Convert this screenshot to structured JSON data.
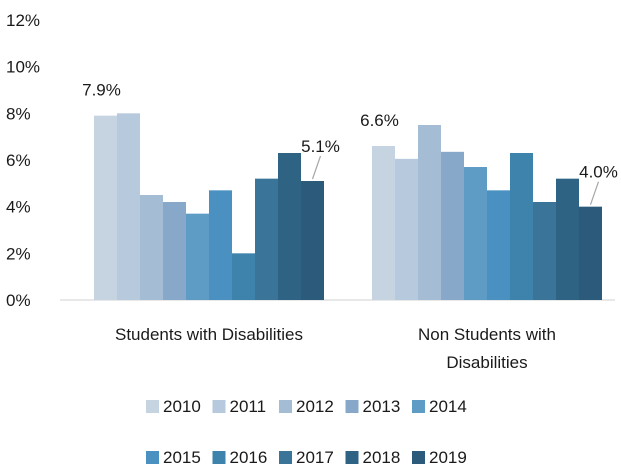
{
  "chart_data": {
    "type": "bar",
    "categories": [
      "Students with Disabilities",
      "Non Students with Disabilities"
    ],
    "category_lines": [
      [
        "Students with Disabilities"
      ],
      [
        "Non Students with",
        "Disabilities"
      ]
    ],
    "series": [
      {
        "name": "2010",
        "color": "#c6d3e0",
        "values": [
          7.9,
          6.6
        ]
      },
      {
        "name": "2011",
        "color": "#b6c9dd",
        "values": [
          8.0,
          6.05
        ]
      },
      {
        "name": "2012",
        "color": "#a4bcd4",
        "values": [
          4.5,
          7.5
        ]
      },
      {
        "name": "2013",
        "color": "#87a8c8",
        "values": [
          4.2,
          6.35
        ]
      },
      {
        "name": "2014",
        "color": "#5e9cc5",
        "values": [
          3.7,
          5.7
        ]
      },
      {
        "name": "2015",
        "color": "#4a90c0",
        "values": [
          4.7,
          4.7
        ]
      },
      {
        "name": "2016",
        "color": "#3d83ac",
        "values": [
          2.0,
          6.3
        ]
      },
      {
        "name": "2017",
        "color": "#3a7599",
        "values": [
          5.2,
          4.2
        ]
      },
      {
        "name": "2018",
        "color": "#2e6384",
        "values": [
          6.3,
          5.2
        ]
      },
      {
        "name": "2019",
        "color": "#2b5a7a",
        "values": [
          5.1,
          4.0
        ]
      }
    ],
    "data_labels": [
      {
        "series": 0,
        "category": 0,
        "text": "7.9%"
      },
      {
        "series": 9,
        "category": 0,
        "text": "5.1%"
      },
      {
        "series": 0,
        "category": 1,
        "text": "6.6%"
      },
      {
        "series": 9,
        "category": 1,
        "text": "4.0%"
      }
    ],
    "yticks": [
      "0%",
      "2%",
      "4%",
      "6%",
      "8%",
      "10%",
      "12%"
    ],
    "ylim": [
      0,
      12
    ],
    "title": "",
    "xlabel": "",
    "ylabel": "",
    "grid": false,
    "legend_position": "bottom",
    "legend_rows": [
      [
        0,
        1,
        2,
        3,
        4
      ],
      [
        5,
        6,
        7,
        8,
        9
      ]
    ]
  }
}
